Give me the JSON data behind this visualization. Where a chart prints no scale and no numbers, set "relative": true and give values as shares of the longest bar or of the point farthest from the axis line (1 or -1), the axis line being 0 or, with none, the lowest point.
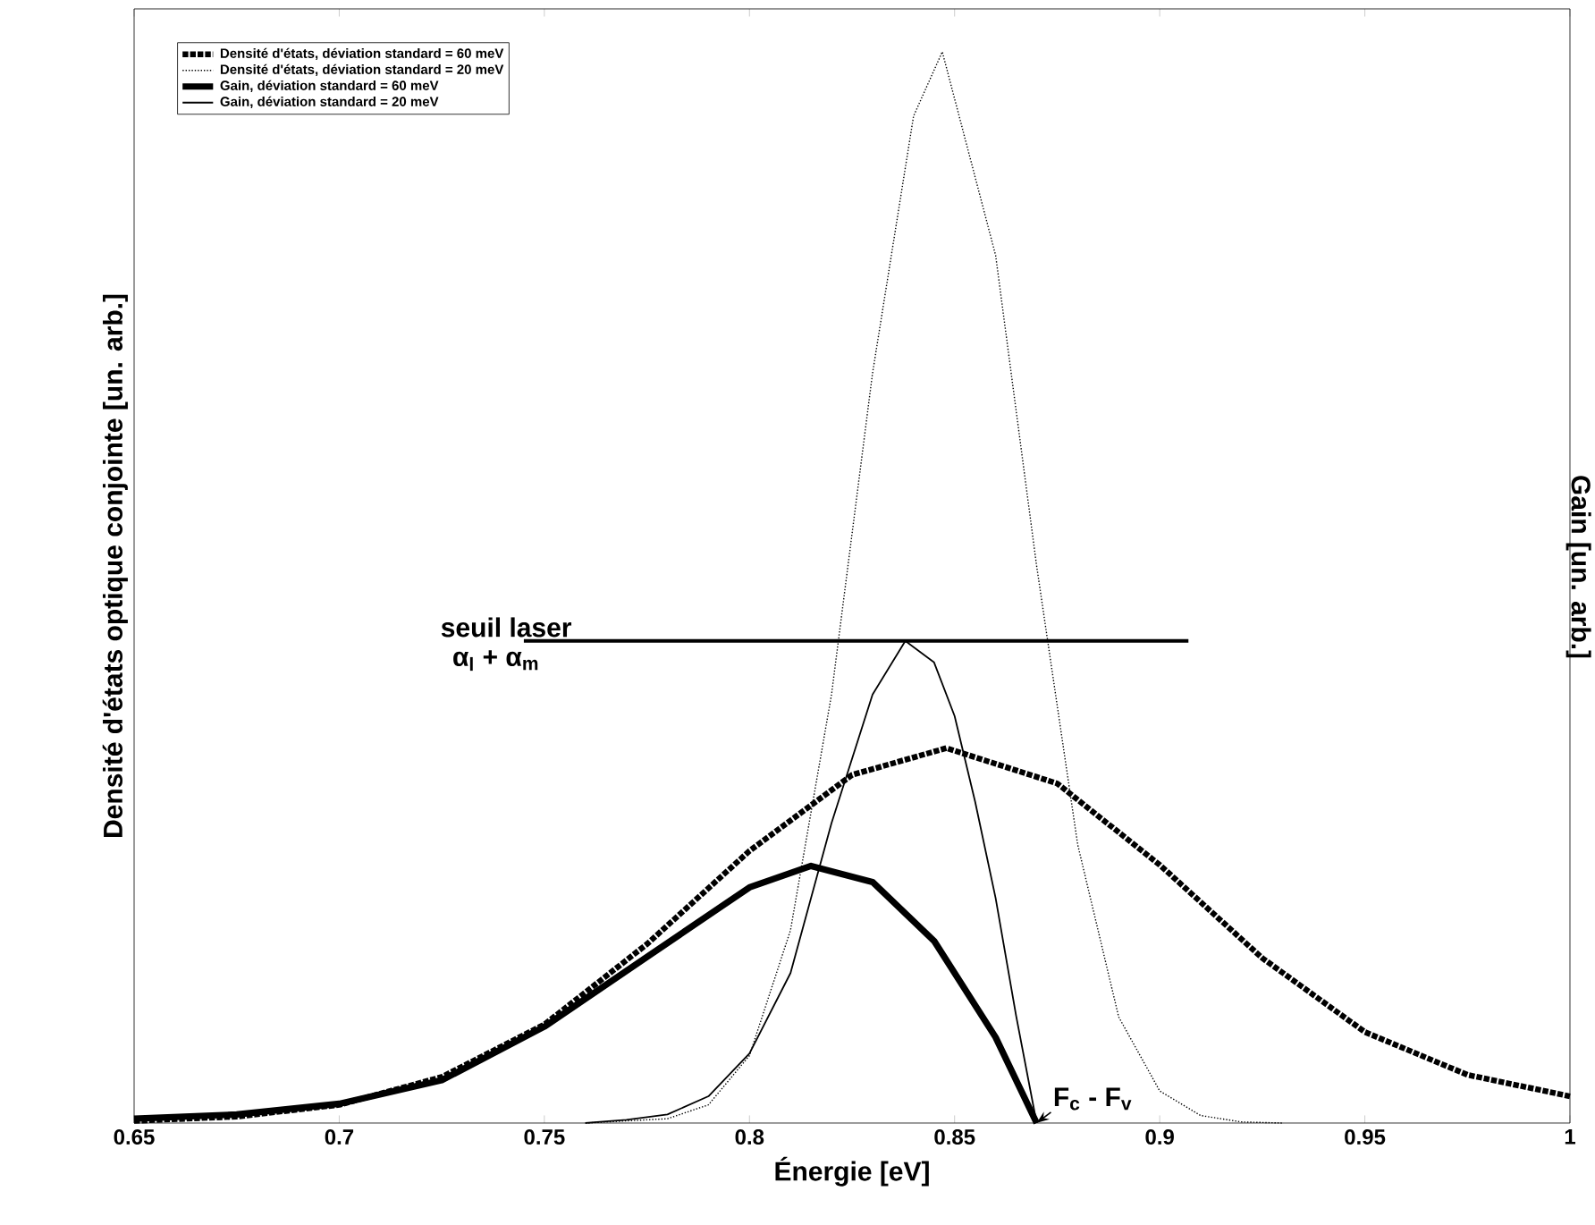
{
  "chart_data": {
    "type": "line",
    "xlabel": "Énergie [eV]",
    "ylabel": "Densité d'états optique conjointe [un. arb.]",
    "y2label": "Gain [un. arb.]",
    "relative": true,
    "xlim": [
      0.65,
      1.0
    ],
    "xticks": [
      0.65,
      0.7,
      0.75,
      0.8,
      0.85,
      0.9,
      0.95,
      1
    ],
    "legend": "top left",
    "series": [
      {
        "name": "Densité d'états, déviation standard = 60 meV",
        "color": "#000000",
        "line_style": "dotted",
        "x": [
          0.65,
          0.675,
          0.7,
          0.725,
          0.75,
          0.775,
          0.8,
          0.825,
          0.848,
          0.875,
          0.9,
          0.925,
          0.95,
          0.975,
          1.0
        ],
        "values": [
          0.002,
          0.006,
          0.017,
          0.043,
          0.092,
          0.167,
          0.254,
          0.325,
          0.35,
          0.317,
          0.241,
          0.154,
          0.085,
          0.045,
          0.025
        ]
      },
      {
        "name": "Densité d'états, déviation standard = 20 meV",
        "color": "#000000",
        "line_style": "dotted",
        "x": [
          0.76,
          0.78,
          0.79,
          0.8,
          0.81,
          0.82,
          0.83,
          0.84,
          0.847,
          0.86,
          0.87,
          0.88,
          0.89,
          0.9,
          0.91,
          0.92,
          0.93
        ],
        "values": [
          0.0,
          0.004,
          0.017,
          0.063,
          0.18,
          0.4,
          0.7,
          0.94,
          1.0,
          0.81,
          0.52,
          0.26,
          0.099,
          0.03,
          0.007,
          0.001,
          0.0
        ]
      },
      {
        "name": "Gain, déviation standard = 60 meV",
        "color": "#000000",
        "line_style": "solid",
        "x": [
          0.65,
          0.675,
          0.7,
          0.725,
          0.75,
          0.775,
          0.8,
          0.815,
          0.83,
          0.845,
          0.86,
          0.87
        ],
        "values": [
          0.004,
          0.008,
          0.018,
          0.04,
          0.09,
          0.155,
          0.22,
          0.24,
          0.225,
          0.17,
          0.08,
          0.0
        ]
      },
      {
        "name": "Gain, déviation standard = 20 meV",
        "color": "#000000",
        "line_style": "solid",
        "x": [
          0.76,
          0.77,
          0.78,
          0.79,
          0.8,
          0.81,
          0.82,
          0.83,
          0.838,
          0.845,
          0.85,
          0.855,
          0.86,
          0.865,
          0.87
        ],
        "values": [
          0.0,
          0.003,
          0.008,
          0.025,
          0.065,
          0.14,
          0.28,
          0.4,
          0.45,
          0.43,
          0.38,
          0.3,
          0.21,
          0.1,
          0.0
        ]
      },
      {
        "color": "#000000",
        "line_style": "solid",
        "x": [
          0.745,
          0.907
        ],
        "values": [
          0.45,
          0.45
        ]
      }
    ],
    "annotations": [
      "seuil laser",
      "α$_{l}$ + α$_{m}$",
      "F$_{c}$ - F$_{v}$"
    ]
  }
}
